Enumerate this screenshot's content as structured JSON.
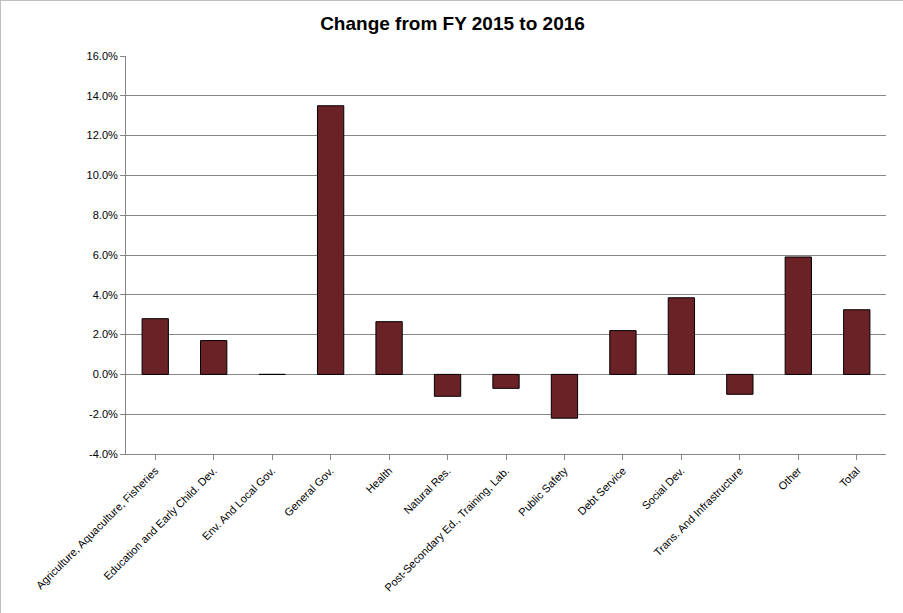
{
  "chart_data": {
    "type": "bar",
    "title": "Change from FY 2015 to 2016",
    "categories": [
      "Agriculture, Aquaculture, Fisheries",
      "Education and Early Child. Dev.",
      "Env. And Local Gov.",
      "General Gov.",
      "Health",
      "Natural Res.",
      "Post-Secondary Ed., Training, Lab.",
      "Public Safety",
      "Debt Service",
      "Social Dev.",
      "Trans. And Infrastructure",
      "Other",
      "Total"
    ],
    "values": [
      2.8,
      1.7,
      0,
      13.5,
      2.65,
      -1.1,
      -0.7,
      -2.2,
      2.2,
      3.85,
      -1.0,
      5.9,
      3.25
    ],
    "color": "#6b2226",
    "ylim": [
      -4,
      16
    ],
    "yticks": [
      {
        "value": -4,
        "label": "-4.0%"
      },
      {
        "value": -2,
        "label": "-2.0%"
      },
      {
        "value": 0,
        "label": "0.0%"
      },
      {
        "value": 2,
        "label": "2.0%"
      },
      {
        "value": 4,
        "label": "4.0%"
      },
      {
        "value": 6,
        "label": "6.0%"
      },
      {
        "value": 8,
        "label": "8.0%"
      },
      {
        "value": 10,
        "label": "10.0%"
      },
      {
        "value": 12,
        "label": "12.0%"
      },
      {
        "value": 14,
        "label": "14.0%"
      },
      {
        "value": 16,
        "label": "16.0%"
      }
    ],
    "grid": true
  }
}
